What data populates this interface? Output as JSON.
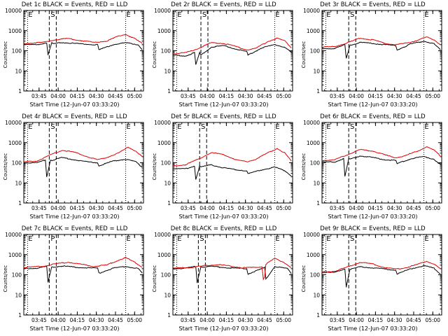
{
  "chart_data": [
    {
      "type": "line",
      "title": "Det 1c BLACK = Events, RED = LLD",
      "xlabel": "Start Time (12-Jun-07 03:33:20)",
      "ylabel": "Counts/sec",
      "yscale": "log",
      "ylim": [
        1,
        10000
      ],
      "xlim_minutes_after_0333": [
        0,
        94
      ],
      "ytick_labels": [
        "1",
        "10",
        "100",
        "1000",
        "10000"
      ],
      "xtick_labels": [
        "03:45",
        "04:00",
        "04:15",
        "04:30",
        "04:45",
        "05:00"
      ],
      "markers": [
        {
          "label": "E",
          "time": "03:36"
        },
        {
          "label": "S",
          "time": "03:53"
        },
        {
          "label": "E",
          "time": "04:53"
        }
      ],
      "series": [
        {
          "name": "Events",
          "color": "#000000",
          "t": [
            0,
            10,
            18,
            19,
            22,
            23,
            30,
            40,
            50,
            58,
            59,
            70,
            80,
            90,
            93
          ],
          "y": [
            200,
            200,
            250,
            60,
            250,
            220,
            260,
            230,
            210,
            200,
            110,
            200,
            250,
            200,
            110
          ]
        },
        {
          "name": "LLD",
          "color": "#e00000",
          "t": [
            0,
            15,
            25,
            35,
            45,
            55,
            65,
            75,
            80,
            87,
            93
          ],
          "y": [
            230,
            260,
            360,
            400,
            320,
            260,
            300,
            550,
            650,
            400,
            230
          ]
        }
      ]
    },
    {
      "type": "line",
      "title": "Det 2r BLACK = Events, RED = LLD",
      "xlabel": "Start Time (12-Jun-07 03:33:20)",
      "ylabel": "Counts/sec",
      "yscale": "log",
      "ylim": [
        1,
        10000
      ],
      "ytick_labels": [
        "1",
        "10",
        "100",
        "1000",
        "10000"
      ],
      "xtick_labels": [
        "03:45",
        "04:00",
        "04:15",
        "04:30",
        "04:45",
        "05:00"
      ],
      "markers": [
        {
          "label": "E",
          "time": "03:36"
        },
        {
          "label": "S",
          "time": "03:55"
        },
        {
          "label": "E",
          "time": "04:53"
        }
      ],
      "series": [
        {
          "name": "Events",
          "color": "#000000",
          "t": [
            0,
            10,
            17,
            18,
            21,
            22,
            30,
            40,
            50,
            58,
            59,
            70,
            80,
            88,
            93
          ],
          "y": [
            60,
            55,
            80,
            20,
            80,
            60,
            150,
            180,
            120,
            90,
            60,
            140,
            200,
            150,
            80
          ]
        },
        {
          "name": "LLD",
          "color": "#e00000",
          "t": [
            0,
            10,
            20,
            30,
            40,
            50,
            58,
            65,
            75,
            82,
            88,
            93
          ],
          "y": [
            70,
            80,
            130,
            250,
            230,
            160,
            110,
            130,
            300,
            420,
            300,
            140
          ]
        }
      ]
    },
    {
      "type": "line",
      "title": "Det 3r BLACK = Events, RED = LLD",
      "xlabel": "Start Time (12-Jun-07 03:33:20)",
      "ylabel": "Counts/sec",
      "yscale": "log",
      "ylim": [
        1,
        10000
      ],
      "ytick_labels": [
        "1",
        "10",
        "100",
        "1000",
        "10000"
      ],
      "xtick_labels": [
        "03:45",
        "04:00",
        "04:15",
        "04:30",
        "04:45",
        "05:00"
      ],
      "markers": [
        {
          "label": "E",
          "time": "03:36"
        },
        {
          "label": "S",
          "time": "03:54"
        },
        {
          "label": "E",
          "time": "04:53"
        }
      ],
      "series": [
        {
          "name": "Events",
          "color": "#000000",
          "t": [
            0,
            10,
            18,
            19,
            22,
            23,
            30,
            40,
            50,
            58,
            59,
            70,
            80,
            88,
            93
          ],
          "y": [
            130,
            130,
            200,
            40,
            200,
            190,
            260,
            230,
            200,
            180,
            110,
            220,
            300,
            220,
            110
          ]
        },
        {
          "name": "LLD",
          "color": "#e00000",
          "t": [
            0,
            10,
            20,
            30,
            40,
            50,
            58,
            65,
            75,
            82,
            88,
            93
          ],
          "y": [
            150,
            160,
            250,
            420,
            350,
            230,
            200,
            230,
            330,
            480,
            350,
            200
          ]
        }
      ]
    },
    {
      "type": "line",
      "title": "Det 4r BLACK = Events, RED = LLD",
      "xlabel": "Start Time (12-Jun-07 03:33:20)",
      "ylabel": "Counts/sec",
      "yscale": "log",
      "ylim": [
        1,
        10000
      ],
      "ytick_labels": [
        "1",
        "10",
        "100",
        "1000",
        "10000"
      ],
      "xtick_labels": [
        "03:45",
        "04:00",
        "04:15",
        "04:30",
        "04:45",
        "05:00"
      ],
      "markers": [
        {
          "label": "E",
          "time": "03:36"
        },
        {
          "label": "S",
          "time": "03:53"
        },
        {
          "label": "E",
          "time": "04:53"
        }
      ],
      "series": [
        {
          "name": "Events",
          "color": "#000000",
          "t": [
            0,
            10,
            17,
            18,
            21,
            22,
            30,
            40,
            50,
            58,
            59,
            70,
            80,
            88,
            93
          ],
          "y": [
            100,
            100,
            140,
            20,
            140,
            130,
            180,
            140,
            110,
            100,
            70,
            120,
            150,
            110,
            60
          ]
        },
        {
          "name": "LLD",
          "color": "#e00000",
          "t": [
            0,
            10,
            20,
            30,
            40,
            50,
            58,
            65,
            75,
            82,
            88,
            93
          ],
          "y": [
            110,
            120,
            230,
            420,
            330,
            200,
            140,
            180,
            320,
            600,
            380,
            200
          ]
        }
      ]
    },
    {
      "type": "line",
      "title": "Det 5r BLACK = Events, RED = LLD",
      "xlabel": "Start Time (12-Jun-07 03:33:20)",
      "ylabel": "Counts/sec",
      "yscale": "log",
      "ylim": [
        1,
        10000
      ],
      "ytick_labels": [
        "1",
        "10",
        "100",
        "1000",
        "10000"
      ],
      "xtick_labels": [
        "03:45",
        "04:00",
        "04:15",
        "04:30",
        "04:45",
        "05:00"
      ],
      "markers": [
        {
          "label": "E",
          "time": "03:36"
        },
        {
          "label": "S",
          "time": "03:54"
        },
        {
          "label": "E",
          "time": "04:53"
        }
      ],
      "series": [
        {
          "name": "Events",
          "color": "#000000",
          "t": [
            0,
            10,
            17,
            18,
            21,
            22,
            30,
            40,
            50,
            58,
            59,
            70,
            80,
            88,
            93
          ],
          "y": [
            50,
            50,
            70,
            15,
            70,
            60,
            80,
            55,
            45,
            40,
            28,
            45,
            60,
            40,
            22
          ]
        },
        {
          "name": "LLD",
          "color": "#e00000",
          "t": [
            0,
            10,
            20,
            30,
            40,
            50,
            58,
            65,
            75,
            82,
            88,
            93
          ],
          "y": [
            70,
            80,
            150,
            320,
            250,
            140,
            110,
            150,
            320,
            520,
            300,
            120
          ]
        }
      ]
    },
    {
      "type": "line",
      "title": "Det 6r BLACK = Events, RED = LLD",
      "xlabel": "Start Time (12-Jun-07 03:33:20)",
      "ylabel": "Counts/sec",
      "yscale": "log",
      "ylim": [
        1,
        10000
      ],
      "ytick_labels": [
        "1",
        "10",
        "100",
        "1000",
        "10000"
      ],
      "xtick_labels": [
        "03:45",
        "04:00",
        "04:15",
        "04:30",
        "04:45",
        "05:00"
      ],
      "markers": [
        {
          "label": "E",
          "time": "03:36"
        },
        {
          "label": "S",
          "time": "03:54"
        },
        {
          "label": "E",
          "time": "04:53"
        }
      ],
      "series": [
        {
          "name": "Events",
          "color": "#000000",
          "t": [
            0,
            10,
            17,
            18,
            21,
            22,
            30,
            40,
            50,
            58,
            59,
            70,
            80,
            88,
            93
          ],
          "y": [
            110,
            110,
            160,
            20,
            160,
            150,
            220,
            180,
            140,
            130,
            90,
            160,
            200,
            150,
            80
          ]
        },
        {
          "name": "LLD",
          "color": "#e00000",
          "t": [
            0,
            10,
            20,
            30,
            40,
            50,
            58,
            65,
            75,
            82,
            88,
            93
          ],
          "y": [
            130,
            140,
            250,
            450,
            380,
            240,
            180,
            220,
            380,
            620,
            420,
            220
          ]
        }
      ]
    },
    {
      "type": "line",
      "title": "Det 7c BLACK = Events, RED = LLD",
      "xlabel": "Start Time (12-Jun-07 03:33:20)",
      "ylabel": "Counts/sec",
      "yscale": "log",
      "ylim": [
        1,
        10000
      ],
      "ytick_labels": [
        "1",
        "10",
        "100",
        "1000",
        "10000"
      ],
      "xtick_labels": [
        "03:45",
        "04:00",
        "04:15",
        "04:30",
        "04:45",
        "05:00"
      ],
      "markers": [
        {
          "label": "E",
          "time": "03:36"
        },
        {
          "label": "P",
          "time": "03:53"
        },
        {
          "label": "E",
          "time": "04:53"
        }
      ],
      "series": [
        {
          "name": "Events",
          "color": "#000000",
          "t": [
            0,
            10,
            18,
            19,
            22,
            23,
            30,
            40,
            50,
            58,
            59,
            70,
            80,
            90,
            93
          ],
          "y": [
            200,
            210,
            260,
            40,
            260,
            240,
            270,
            240,
            220,
            210,
            120,
            210,
            260,
            200,
            120
          ]
        },
        {
          "name": "LLD",
          "color": "#e00000",
          "t": [
            0,
            15,
            25,
            35,
            45,
            55,
            65,
            75,
            80,
            87,
            93
          ],
          "y": [
            230,
            260,
            350,
            420,
            330,
            260,
            300,
            550,
            700,
            420,
            240
          ]
        }
      ]
    },
    {
      "type": "line",
      "title": "Det 8c BLACK = Events, RED = LLD",
      "xlabel": "Start Time (12-Jun-07 03:33:20)",
      "ylabel": "Counts/sec",
      "yscale": "log",
      "ylim": [
        1,
        10000
      ],
      "ytick_labels": [
        "1",
        "10",
        "100",
        "1000",
        "10000"
      ],
      "xtick_labels": [
        "03:45",
        "04:00",
        "04:15",
        "04:30",
        "04:45",
        "05:00"
      ],
      "markers": [
        {
          "label": "E",
          "time": "03:36"
        },
        {
          "label": "S",
          "time": "03:53"
        },
        {
          "label": "E",
          "time": "04:53"
        }
      ],
      "series": [
        {
          "name": "Events",
          "color": "#000000",
          "t": [
            0,
            10,
            18,
            19,
            22,
            23,
            30,
            40,
            50,
            58,
            59,
            70,
            72,
            73,
            80,
            90,
            93
          ],
          "y": [
            200,
            210,
            260,
            40,
            260,
            240,
            260,
            230,
            210,
            200,
            110,
            200,
            230,
            60,
            260,
            200,
            110
          ]
        },
        {
          "name": "LLD",
          "color": "#e00000",
          "t": [
            0,
            15,
            25,
            35,
            45,
            55,
            65,
            70,
            71,
            72,
            73,
            80,
            87,
            93
          ],
          "y": [
            210,
            230,
            280,
            320,
            270,
            220,
            230,
            250,
            60,
            80,
            330,
            650,
            420,
            230
          ]
        }
      ]
    },
    {
      "type": "line",
      "title": "Det 9r BLACK = Events, RED = LLD",
      "xlabel": "Start Time (12-Jun-07 03:33:20)",
      "ylabel": "Counts/sec",
      "yscale": "log",
      "ylim": [
        1,
        10000
      ],
      "ytick_labels": [
        "1",
        "10",
        "100",
        "1000",
        "10000"
      ],
      "xtick_labels": [
        "03:45",
        "04:00",
        "04:15",
        "04:30",
        "04:45",
        "05:00"
      ],
      "markers": [
        {
          "label": "E",
          "time": "03:36"
        },
        {
          "label": "S",
          "time": "03:54"
        },
        {
          "label": "E",
          "time": "04:53"
        }
      ],
      "series": [
        {
          "name": "Events",
          "color": "#000000",
          "t": [
            0,
            10,
            18,
            19,
            22,
            23,
            30,
            40,
            50,
            58,
            59,
            70,
            80,
            88,
            93
          ],
          "y": [
            130,
            130,
            200,
            25,
            200,
            190,
            250,
            220,
            190,
            170,
            110,
            200,
            280,
            210,
            110
          ]
        },
        {
          "name": "LLD",
          "color": "#e00000",
          "t": [
            0,
            10,
            20,
            30,
            40,
            50,
            58,
            65,
            75,
            82,
            88,
            93
          ],
          "y": [
            140,
            150,
            240,
            420,
            340,
            220,
            190,
            220,
            320,
            470,
            340,
            190
          ]
        }
      ]
    }
  ]
}
